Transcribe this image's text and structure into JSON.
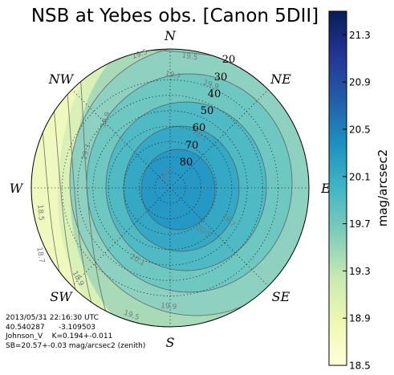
{
  "chart_data": {
    "type": "polar contour map",
    "title": "NSB at Yebes obs. [Canon 5DII]",
    "directions": [
      "N",
      "NE",
      "E",
      "SE",
      "S",
      "SW",
      "W",
      "NW"
    ],
    "altitude_rings": [
      "20",
      "30",
      "40",
      "50",
      "60",
      "70",
      "80"
    ],
    "contour_labels": [
      "19.5",
      "19.5",
      "19.7",
      "19.9",
      "19.9",
      "20.1",
      "20.1",
      "20.5",
      "20.5",
      "19.7",
      "18.7",
      "18.9",
      "19.5",
      "19.9",
      "19.3",
      "18.5"
    ],
    "colorbar": {
      "label": "mag/arcsec2",
      "ticks": [
        "21.3",
        "20.9",
        "20.5",
        "20.1",
        "19.7",
        "19.3",
        "18.9",
        "18.5"
      ],
      "range": [
        18.5,
        21.5
      ],
      "colormap": [
        "#ffffd9",
        "#edf8b1",
        "#c7e9b4",
        "#7fcdbb",
        "#41b6c4",
        "#1d91c0",
        "#225ea8",
        "#253494",
        "#081d58"
      ]
    },
    "info": {
      "line1": "2013/05/31 22:16:30 UTC",
      "line2": "40.540287      -3.109503",
      "line3": "Johnson_V    K=0.194+-0.011",
      "line4": "SB=20.57+-0.03 mag/arcsec2 (zenith)"
    }
  }
}
